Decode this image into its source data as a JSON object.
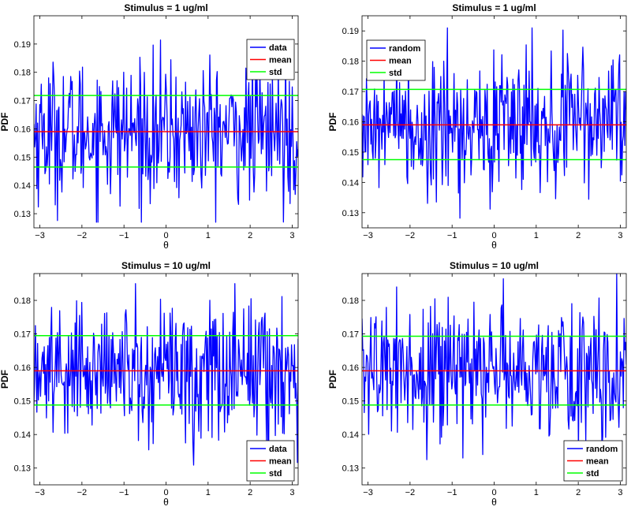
{
  "figure": {
    "colors": {
      "data": "#0000ff",
      "mean": "#ff0000",
      "std": "#00ff00",
      "axis": "#000000"
    }
  },
  "chart_data": [
    {
      "type": "line",
      "title": "Stimulus = 1 ug/ml",
      "xlabel": "θ",
      "ylabel": "PDF",
      "xlim": [
        -3.1416,
        3.1416
      ],
      "ylim": [
        0.125,
        0.2
      ],
      "xticks": [
        -3,
        -2,
        -1,
        0,
        1,
        2,
        3
      ],
      "xtick_labels": [
        "−3",
        "−2",
        "−1",
        "0",
        "1",
        "2",
        "3"
      ],
      "yticks": [
        0.13,
        0.14,
        0.15,
        0.16,
        0.17,
        0.18,
        0.19
      ],
      "ytick_labels": [
        "0.13",
        "0.14",
        "0.15",
        "0.16",
        "0.17",
        "0.18",
        "0.19"
      ],
      "legend_position": "top-right",
      "series": [
        {
          "name": "data",
          "type": "noisy",
          "mean": 0.159,
          "std": 0.0125,
          "min": 0.127,
          "max": 0.197,
          "n": 360
        },
        {
          "name": "mean",
          "type": "hline",
          "value": 0.159
        },
        {
          "name": "std",
          "type": "hline-pair",
          "values": [
            0.1465,
            0.1718
          ]
        }
      ]
    },
    {
      "type": "line",
      "title": "Stimulus = 1 ug/ml",
      "xlabel": "θ",
      "ylabel": "PDF",
      "xlim": [
        -3.1416,
        3.1416
      ],
      "ylim": [
        0.125,
        0.195
      ],
      "xticks": [
        -3,
        -2,
        -1,
        0,
        1,
        2,
        3
      ],
      "xtick_labels": [
        "−3",
        "−2",
        "−1",
        "0",
        "1",
        "2",
        "3"
      ],
      "yticks": [
        0.13,
        0.14,
        0.15,
        0.16,
        0.17,
        0.18,
        0.19
      ],
      "ytick_labels": [
        "0.13",
        "0.14",
        "0.15",
        "0.16",
        "0.17",
        "0.18",
        "0.19"
      ],
      "legend_position": "top-left",
      "series": [
        {
          "name": "random",
          "type": "noisy",
          "mean": 0.159,
          "std": 0.0118,
          "min": 0.125,
          "max": 0.191,
          "n": 360
        },
        {
          "name": "mean",
          "type": "hline",
          "value": 0.159
        },
        {
          "name": "std",
          "type": "hline-pair",
          "values": [
            0.1475,
            0.1707
          ]
        }
      ]
    },
    {
      "type": "line",
      "title": "Stimulus = 10 ug/ml",
      "xlabel": "θ",
      "ylabel": "PDF",
      "xlim": [
        -3.1416,
        3.1416
      ],
      "ylim": [
        0.125,
        0.188
      ],
      "xticks": [
        -3,
        -2,
        -1,
        0,
        1,
        2,
        3
      ],
      "xtick_labels": [
        "−3",
        "−2",
        "−1",
        "0",
        "1",
        "2",
        "3"
      ],
      "yticks": [
        0.13,
        0.14,
        0.15,
        0.16,
        0.17,
        0.18
      ],
      "ytick_labels": [
        "0.13",
        "0.14",
        "0.15",
        "0.16",
        "0.17",
        "0.18"
      ],
      "legend_position": "bottom-right",
      "series": [
        {
          "name": "data",
          "type": "noisy",
          "mean": 0.159,
          "std": 0.0105,
          "min": 0.125,
          "max": 0.185,
          "n": 360
        },
        {
          "name": "mean",
          "type": "hline",
          "value": 0.159
        },
        {
          "name": "std",
          "type": "hline-pair",
          "values": [
            0.1488,
            0.1695
          ]
        }
      ]
    },
    {
      "type": "line",
      "title": "Stimulus = 10 ug/ml",
      "xlabel": "θ",
      "ylabel": "PDF",
      "xlim": [
        -3.1416,
        3.1416
      ],
      "ylim": [
        0.125,
        0.188
      ],
      "xticks": [
        -3,
        -2,
        -1,
        0,
        1,
        2,
        3
      ],
      "xtick_labels": [
        "−3",
        "−2",
        "−1",
        "0",
        "1",
        "2",
        "3"
      ],
      "yticks": [
        0.13,
        0.14,
        0.15,
        0.16,
        0.17,
        0.18
      ],
      "ytick_labels": [
        "0.13",
        "0.14",
        "0.15",
        "0.16",
        "0.17",
        "0.18"
      ],
      "legend_position": "bottom-right",
      "series": [
        {
          "name": "random",
          "type": "noisy",
          "mean": 0.159,
          "std": 0.0103,
          "min": 0.129,
          "max": 0.188,
          "n": 360
        },
        {
          "name": "mean",
          "type": "hline",
          "value": 0.159
        },
        {
          "name": "std",
          "type": "hline-pair",
          "values": [
            0.1488,
            0.1693
          ]
        }
      ]
    }
  ]
}
